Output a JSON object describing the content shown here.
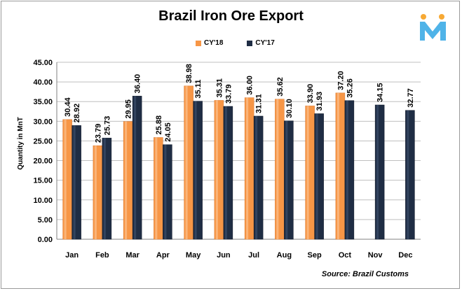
{
  "chart_data": {
    "type": "bar",
    "title": "Brazil Iron Ore Export",
    "ylabel": "Quantity in MnT",
    "xlabel": "",
    "ylim": [
      0,
      45
    ],
    "yticks": [
      "0.00",
      "5.00",
      "10.00",
      "15.00",
      "20.00",
      "25.00",
      "30.00",
      "35.00",
      "40.00",
      "45.00"
    ],
    "categories": [
      "Jan",
      "Feb",
      "Mar",
      "Apr",
      "May",
      "Jun",
      "Jul",
      "Aug",
      "Sep",
      "Oct",
      "Nov",
      "Dec"
    ],
    "series": [
      {
        "name": "CY'18",
        "color": "#f79646",
        "values": [
          30.44,
          23.79,
          29.95,
          25.88,
          38.98,
          35.31,
          36.0,
          35.62,
          33.9,
          37.2,
          null,
          null
        ],
        "labels": [
          "30.44",
          "23.79",
          "29.95",
          "25.88",
          "38.98",
          "35.31",
          "36.00",
          "35.62",
          "33.90",
          "37.20",
          "",
          ""
        ]
      },
      {
        "name": "CY'17",
        "color": "#1f2d44",
        "values": [
          28.92,
          25.73,
          36.4,
          24.05,
          35.11,
          33.79,
          31.31,
          30.1,
          31.93,
          35.26,
          34.15,
          32.77
        ],
        "labels": [
          "28.92",
          "25.73",
          "36.40",
          "24.05",
          "35.11",
          "33.79",
          "31.31",
          "30.10",
          "31.93",
          "35.26",
          "34.15",
          "32.77"
        ]
      }
    ],
    "grid": true,
    "legend_position": "top"
  },
  "source_text": "Source: Brazil Customs",
  "logo_icon": "m-logo-icon"
}
